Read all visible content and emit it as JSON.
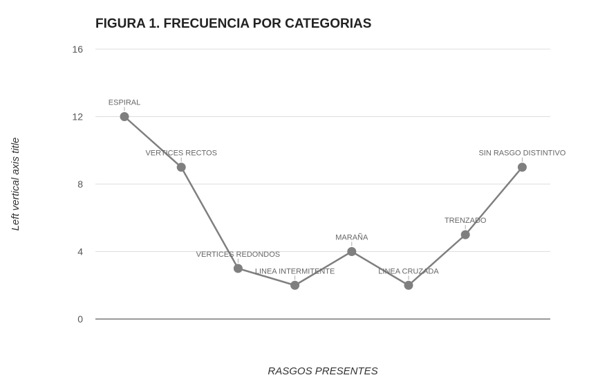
{
  "chart_data": {
    "type": "line",
    "title": "FIGURA 1. FRECUENCIA POR CATEGORIAS",
    "xlabel": "RASGOS PRESENTES",
    "ylabel": "Left vertical axis title",
    "ylim": [
      0,
      16
    ],
    "yticks": [
      "0",
      "4",
      "8",
      "12",
      "16"
    ],
    "grid": true,
    "legend": "none",
    "categories": [
      "ESPIRAL",
      "VERTICES RECTOS",
      "VERTICES REDONDOS",
      "LINEA INTERMITENTE",
      "MARAÑA",
      "LINEA CRUZADA",
      "TRENZADO",
      "SIN RASGO DISTINTIVO"
    ],
    "values": [
      12,
      9,
      3,
      2,
      4,
      2,
      5,
      9
    ],
    "colors": {
      "line": "#7f7f7f",
      "gridline": "#dddddd",
      "axis": "#333333"
    }
  }
}
